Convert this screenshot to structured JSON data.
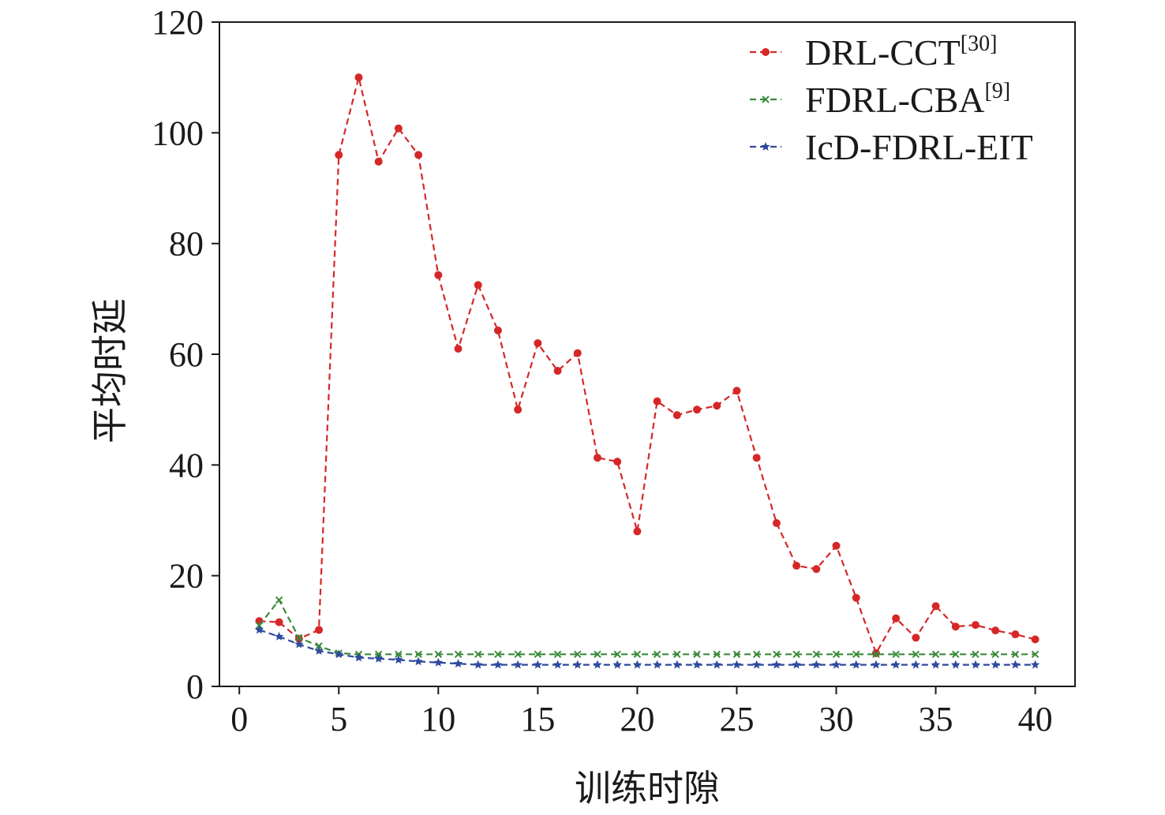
{
  "chart_data": {
    "type": "line",
    "x_label": "训练时隙",
    "y_label": "平均时延",
    "x": [
      1,
      2,
      3,
      4,
      5,
      6,
      7,
      8,
      9,
      10,
      11,
      12,
      13,
      14,
      15,
      16,
      17,
      18,
      19,
      20,
      21,
      22,
      23,
      24,
      25,
      26,
      27,
      28,
      29,
      30,
      31,
      32,
      33,
      34,
      35,
      36,
      37,
      38,
      39,
      40
    ],
    "series": [
      {
        "name": "DRL-CCT",
        "ref": "[30]",
        "color": "#d62728",
        "marker": "circle",
        "values": [
          11.8,
          11.6,
          8.6,
          10.2,
          96,
          110,
          94.8,
          100.8,
          96,
          74.3,
          61,
          72.5,
          64.3,
          50,
          62,
          57,
          60.2,
          41.3,
          40.6,
          28,
          51.5,
          49,
          50,
          50.7,
          53.4,
          41.3,
          29.5,
          21.8,
          21.2,
          25.4,
          16,
          6,
          12.3,
          8.8,
          14.5,
          10.8,
          11.1,
          10.1,
          9.4,
          8.5
        ]
      },
      {
        "name": "FDRL-CBA",
        "ref": "[9]",
        "color": "#3a8a3a",
        "marker": "cross",
        "values": [
          11,
          15.6,
          8.8,
          7.3,
          6,
          5.8,
          5.8,
          5.8,
          5.8,
          5.8,
          5.8,
          5.8,
          5.8,
          5.8,
          5.8,
          5.8,
          5.8,
          5.8,
          5.8,
          5.8,
          5.8,
          5.8,
          5.8,
          5.8,
          5.8,
          5.8,
          5.8,
          5.8,
          5.8,
          5.8,
          5.8,
          5.8,
          5.8,
          5.8,
          5.8,
          5.8,
          5.8,
          5.8,
          5.8,
          5.8
        ]
      },
      {
        "name": "IcD-FDRL-EIT",
        "color": "#2f4a9e",
        "marker": "star",
        "values": [
          10.2,
          9,
          7.6,
          6.4,
          5.8,
          5.2,
          5,
          4.8,
          4.5,
          4.3,
          4.1,
          3.9,
          3.9,
          3.9,
          3.9,
          3.9,
          3.9,
          3.9,
          3.9,
          3.9,
          3.9,
          3.9,
          3.9,
          3.9,
          3.9,
          3.9,
          3.9,
          3.9,
          3.9,
          3.9,
          3.9,
          3.9,
          3.9,
          3.9,
          3.9,
          3.9,
          3.9,
          3.9,
          3.9,
          3.9
        ]
      }
    ],
    "xlim": [
      -1,
      42
    ],
    "xticks": [
      0,
      5,
      10,
      15,
      20,
      25,
      30,
      35,
      40
    ],
    "ylim": [
      0,
      120
    ],
    "yticks": [
      0,
      20,
      40,
      60,
      80,
      100,
      120
    ],
    "line_style": "dashed",
    "legend": "upper right"
  }
}
